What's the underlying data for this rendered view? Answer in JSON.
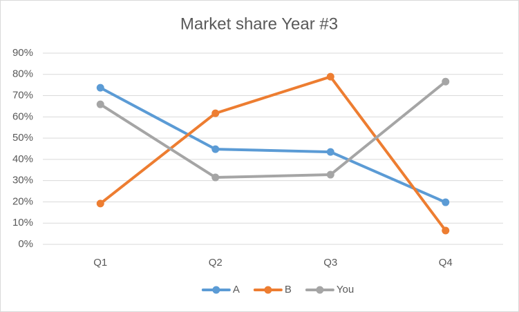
{
  "chart_data": {
    "type": "line",
    "title": "Market share Year #3",
    "categories": [
      "Q1",
      "Q2",
      "Q3",
      "Q4"
    ],
    "series": [
      {
        "name": "A",
        "color": "#5b9bd5",
        "values": [
          73.7,
          44.8,
          43.5,
          19.8
        ]
      },
      {
        "name": "B",
        "color": "#ed7d31",
        "values": [
          19.2,
          61.7,
          78.9,
          6.5
        ]
      },
      {
        "name": "You",
        "color": "#a5a5a5",
        "values": [
          65.9,
          31.5,
          32.8,
          76.6
        ]
      }
    ],
    "ylim": [
      0,
      90
    ],
    "yticks": [
      {
        "value": 0,
        "label": "0%"
      },
      {
        "value": 10,
        "label": "10%"
      },
      {
        "value": 20,
        "label": "20%"
      },
      {
        "value": 30,
        "label": "30%"
      },
      {
        "value": 40,
        "label": "40%"
      },
      {
        "value": 50,
        "label": "50%"
      },
      {
        "value": 60,
        "label": "60%"
      },
      {
        "value": 70,
        "label": "70%"
      },
      {
        "value": 80,
        "label": "80%"
      },
      {
        "value": 90,
        "label": "90%"
      }
    ],
    "grid": true,
    "legend": "bottom"
  }
}
